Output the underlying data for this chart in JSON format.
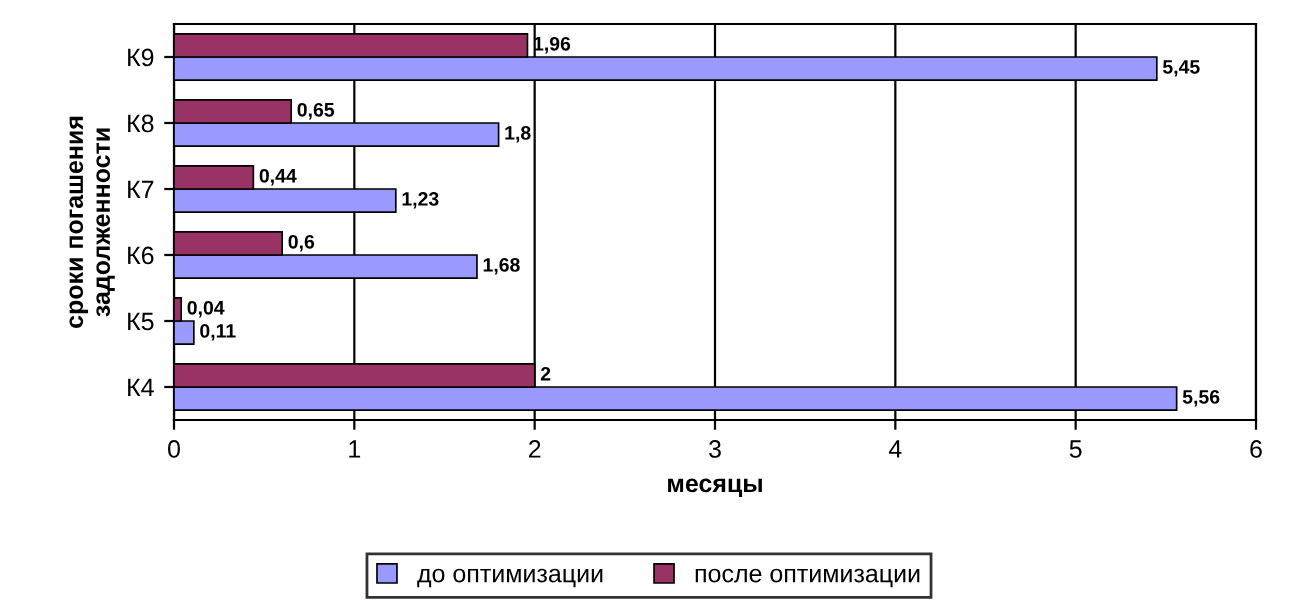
{
  "chart_data": {
    "type": "bar",
    "orientation": "horizontal",
    "xlabel": "месяцы",
    "ylabel": "сроки погашения\nзадолженности",
    "categories": [
      "К9",
      "К8",
      "К7",
      "К6",
      "К5",
      "К4"
    ],
    "series": [
      {
        "name": "до оптимизации",
        "color": "#9999ff",
        "values": [
          5.45,
          1.8,
          1.23,
          1.68,
          0.11,
          5.56
        ],
        "value_labels": [
          "5,45",
          "1,8",
          "1,23",
          "1,68",
          "0,11",
          "5,56"
        ]
      },
      {
        "name": "после оптимизации",
        "color": "#993366",
        "values": [
          1.96,
          0.65,
          0.44,
          0.6,
          0.04,
          2
        ],
        "value_labels": [
          "1,96",
          "0,65",
          "0,44",
          "0,6",
          "0,04",
          "2"
        ]
      }
    ],
    "xlim": [
      0,
      6
    ],
    "xticks": [
      0,
      1,
      2,
      3,
      4,
      5,
      6
    ],
    "grid": "x",
    "legend": "bottom"
  }
}
